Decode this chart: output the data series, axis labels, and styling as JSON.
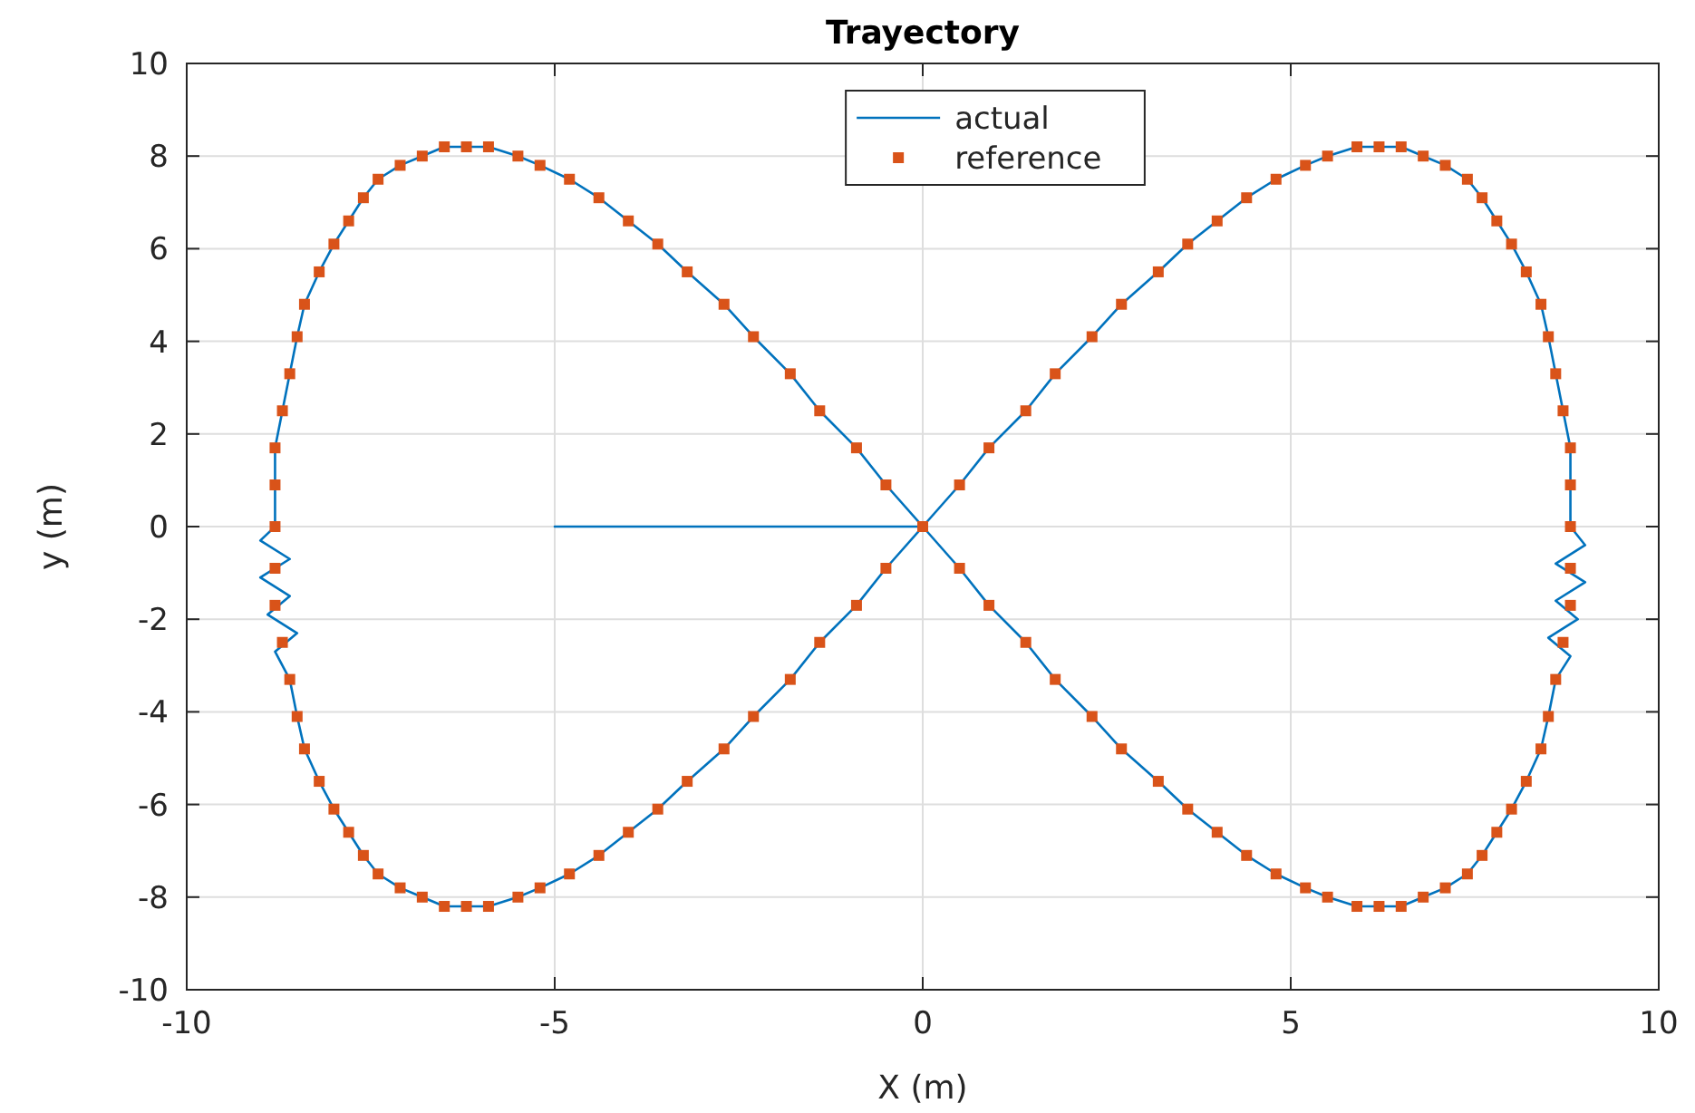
{
  "chart_data": {
    "type": "line",
    "title": "Trayectory",
    "xlabel": "X (m)",
    "ylabel": "y (m)",
    "xlim": [
      -10,
      10
    ],
    "ylim": [
      -10,
      10
    ],
    "xticks": [
      -10,
      -5,
      0,
      5,
      10
    ],
    "yticks": [
      -10,
      -8,
      -6,
      -4,
      -2,
      0,
      2,
      4,
      6,
      8,
      10
    ],
    "grid": true,
    "legend": "top",
    "series": [
      {
        "name": "actual",
        "color": "#0072bd",
        "line_style": "solid",
        "x": [
          -5,
          0,
          0.5,
          0.9,
          1.4,
          1.8,
          2.3,
          2.7,
          3.2,
          3.6,
          4.0,
          4.4,
          4.8,
          5.2,
          5.5,
          5.9,
          6.2,
          6.5,
          6.8,
          7.1,
          7.4,
          7.6,
          7.8,
          8.0,
          8.2,
          8.4,
          8.5,
          8.6,
          8.7,
          8.8,
          8.8,
          8.8,
          9.0,
          8.6,
          9.0,
          8.6,
          8.9,
          8.5,
          8.8,
          8.6,
          8.5,
          8.4,
          8.2,
          8.0,
          7.8,
          7.6,
          7.4,
          7.1,
          6.8,
          6.5,
          6.2,
          5.9,
          5.5,
          5.2,
          4.8,
          4.4,
          4.0,
          3.6,
          3.2,
          2.7,
          2.3,
          1.8,
          1.4,
          0.9,
          0.5,
          0,
          -0.5,
          -0.9,
          -1.4,
          -1.8,
          -2.3,
          -2.7,
          -3.2,
          -3.6,
          -4.0,
          -4.4,
          -4.8,
          -5.2,
          -5.5,
          -5.9,
          -6.2,
          -6.5,
          -6.8,
          -7.1,
          -7.4,
          -7.6,
          -7.8,
          -8.0,
          -8.2,
          -8.4,
          -8.5,
          -8.6,
          -8.7,
          -8.8,
          -8.8,
          -8.8,
          -9.0,
          -8.6,
          -9.0,
          -8.6,
          -8.9,
          -8.5,
          -8.8,
          -8.6,
          -8.5,
          -8.4,
          -8.2,
          -8.0,
          -7.8,
          -7.6,
          -7.4,
          -7.1,
          -6.8,
          -6.5,
          -6.2,
          -5.9,
          -5.5,
          -5.2,
          -4.8,
          -4.4,
          -4.0,
          -3.6,
          -3.2,
          -2.7,
          -2.3,
          -1.8,
          -1.4,
          -0.9,
          -0.5,
          0
        ],
        "values": [
          0,
          0,
          0.9,
          1.7,
          2.5,
          3.3,
          4.1,
          4.8,
          5.5,
          6.1,
          6.6,
          7.1,
          7.5,
          7.8,
          8.0,
          8.2,
          8.2,
          8.2,
          8.0,
          7.8,
          7.5,
          7.1,
          6.6,
          6.1,
          5.5,
          4.8,
          4.1,
          3.3,
          2.5,
          1.7,
          0.9,
          0,
          -0.4,
          -0.8,
          -1.2,
          -1.6,
          -2.0,
          -2.4,
          -2.8,
          -3.3,
          -4.1,
          -4.8,
          -5.5,
          -6.1,
          -6.6,
          -7.1,
          -7.5,
          -7.8,
          -8.0,
          -8.2,
          -8.2,
          -8.2,
          -8.0,
          -7.8,
          -7.5,
          -7.1,
          -6.6,
          -6.1,
          -5.5,
          -4.8,
          -4.1,
          -3.3,
          -2.5,
          -1.7,
          -0.9,
          0,
          0.9,
          1.7,
          2.5,
          3.3,
          4.1,
          4.8,
          5.5,
          6.1,
          6.6,
          7.1,
          7.5,
          7.8,
          8.0,
          8.2,
          8.2,
          8.2,
          8.0,
          7.8,
          7.5,
          7.1,
          6.6,
          6.1,
          5.5,
          4.8,
          4.1,
          3.3,
          2.5,
          1.7,
          0.9,
          0,
          -0.3,
          -0.7,
          -1.1,
          -1.5,
          -1.9,
          -2.3,
          -2.7,
          -3.3,
          -4.1,
          -4.8,
          -5.5,
          -6.1,
          -6.6,
          -7.1,
          -7.5,
          -7.8,
          -8.0,
          -8.2,
          -8.2,
          -8.2,
          -8.0,
          -7.8,
          -7.5,
          -7.1,
          -6.6,
          -6.1,
          -5.5,
          -4.8,
          -4.1,
          -3.3,
          -2.5,
          -1.7,
          -0.9,
          0
        ]
      },
      {
        "name": "reference",
        "type": "scatter",
        "color": "#d95319",
        "marker": "square",
        "x": [
          0.0,
          0.5,
          0.9,
          1.4,
          1.8,
          2.3,
          2.7,
          3.2,
          3.6,
          4.0,
          4.4,
          4.8,
          5.2,
          5.5,
          5.9,
          6.2,
          6.5,
          6.8,
          7.1,
          7.4,
          7.6,
          7.8,
          8.0,
          8.2,
          8.4,
          8.5,
          8.6,
          8.7,
          8.8,
          8.8,
          8.8,
          8.8,
          8.8,
          8.7,
          8.6,
          8.5,
          8.4,
          8.2,
          8.0,
          7.8,
          7.6,
          7.4,
          7.1,
          6.8,
          6.5,
          6.2,
          5.9,
          5.5,
          5.2,
          4.8,
          4.4,
          4.0,
          3.6,
          3.2,
          2.7,
          2.3,
          1.8,
          1.4,
          0.9,
          0.5,
          -0.5,
          -0.9,
          -1.4,
          -1.8,
          -2.3,
          -2.7,
          -3.2,
          -3.6,
          -4.0,
          -4.4,
          -4.8,
          -5.2,
          -5.5,
          -5.9,
          -6.2,
          -6.5,
          -6.8,
          -7.1,
          -7.4,
          -7.6,
          -7.8,
          -8.0,
          -8.2,
          -8.4,
          -8.5,
          -8.6,
          -8.7,
          -8.8,
          -8.8,
          -8.8,
          -8.8,
          -8.8,
          -8.7,
          -8.6,
          -8.5,
          -8.4,
          -8.2,
          -8.0,
          -7.8,
          -7.6,
          -7.4,
          -7.1,
          -6.8,
          -6.5,
          -6.2,
          -5.9,
          -5.5,
          -5.2,
          -4.8,
          -4.4,
          -4.0,
          -3.6,
          -3.2,
          -2.7,
          -2.3,
          -1.8,
          -1.4,
          -0.9,
          -0.5
        ],
        "values": [
          0,
          0.9,
          1.7,
          2.5,
          3.3,
          4.1,
          4.8,
          5.5,
          6.1,
          6.6,
          7.1,
          7.5,
          7.8,
          8.0,
          8.2,
          8.2,
          8.2,
          8.0,
          7.8,
          7.5,
          7.1,
          6.6,
          6.1,
          5.5,
          4.8,
          4.1,
          3.3,
          2.5,
          1.7,
          0.9,
          0,
          -0.9,
          -1.7,
          -2.5,
          -3.3,
          -4.1,
          -4.8,
          -5.5,
          -6.1,
          -6.6,
          -7.1,
          -7.5,
          -7.8,
          -8.0,
          -8.2,
          -8.2,
          -8.2,
          -8.0,
          -7.8,
          -7.5,
          -7.1,
          -6.6,
          -6.1,
          -5.5,
          -4.8,
          -4.1,
          -3.3,
          -2.5,
          -1.7,
          -0.9,
          0.9,
          1.7,
          2.5,
          3.3,
          4.1,
          4.8,
          5.5,
          6.1,
          6.6,
          7.1,
          7.5,
          7.8,
          8.0,
          8.2,
          8.2,
          8.2,
          8.0,
          7.8,
          7.5,
          7.1,
          6.6,
          6.1,
          5.5,
          4.8,
          4.1,
          3.3,
          2.5,
          1.7,
          0.9,
          0,
          -0.9,
          -1.7,
          -2.5,
          -3.3,
          -4.1,
          -4.8,
          -5.5,
          -6.1,
          -6.6,
          -7.1,
          -7.5,
          -7.8,
          -8.0,
          -8.2,
          -8.2,
          -8.2,
          -8.0,
          -7.8,
          -7.5,
          -7.1,
          -6.6,
          -6.1,
          -5.5,
          -4.8,
          -4.1,
          -3.3,
          -2.5,
          -1.7,
          -0.9
        ]
      }
    ]
  }
}
